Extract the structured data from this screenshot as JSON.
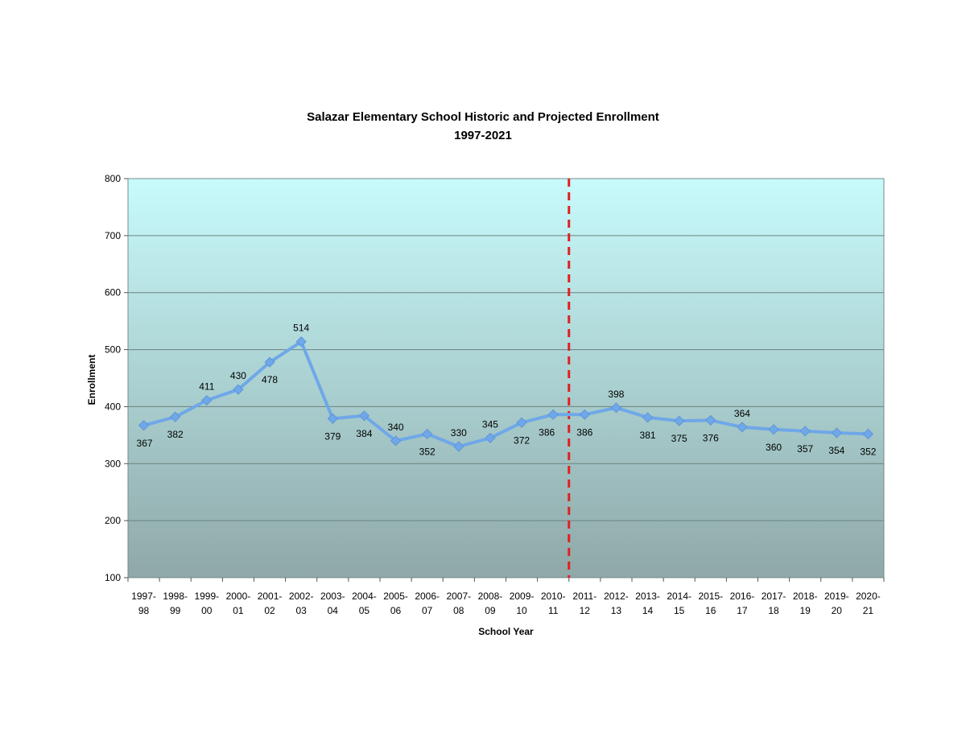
{
  "chart_data": {
    "type": "line",
    "title": "Salazar Elementary School Historic and Projected Enrollment",
    "subtitle": "1997-2021",
    "xlabel": "School Year",
    "ylabel": "Enrollment",
    "ylim": [
      100,
      800
    ],
    "yticks": [
      "100",
      "200",
      "300",
      "400",
      "500",
      "600",
      "700",
      "800"
    ],
    "grid": true,
    "categories": [
      [
        "1997-",
        "98"
      ],
      [
        "1998-",
        "99"
      ],
      [
        "1999-",
        "00"
      ],
      [
        "2000-",
        "01"
      ],
      [
        "2001-",
        "02"
      ],
      [
        "2002-",
        "03"
      ],
      [
        "2003-",
        "04"
      ],
      [
        "2004-",
        "05"
      ],
      [
        "2005-",
        "06"
      ],
      [
        "2006-",
        "07"
      ],
      [
        "2007-",
        "08"
      ],
      [
        "2008-",
        "09"
      ],
      [
        "2009-",
        "10"
      ],
      [
        "2010-",
        "11"
      ],
      [
        "2011-",
        "12"
      ],
      [
        "2012-",
        "13"
      ],
      [
        "2013-",
        "14"
      ],
      [
        "2014-",
        "15"
      ],
      [
        "2015-",
        "16"
      ],
      [
        "2016-",
        "17"
      ],
      [
        "2017-",
        "18"
      ],
      [
        "2018-",
        "19"
      ],
      [
        "2019-",
        "20"
      ],
      [
        "2020-",
        "21"
      ]
    ],
    "series": [
      {
        "values": [
          367,
          382,
          411,
          430,
          478,
          514,
          379,
          384,
          340,
          352,
          330,
          345,
          372,
          386,
          386,
          398,
          381,
          375,
          376,
          364,
          360,
          357,
          354,
          352
        ],
        "labels": [
          "367",
          "382",
          "411",
          "430",
          "478",
          "514",
          "379",
          "384",
          "340",
          "352",
          "330",
          "345",
          "372",
          "386",
          "386",
          "398",
          "381",
          "375",
          "376",
          "364",
          "360",
          "357",
          "354",
          "352"
        ],
        "color": "#6fa8e8"
      }
    ],
    "divider_after_category": 13,
    "divider_color": "#e02020",
    "plot_gradient": [
      "#c8fbfc",
      "#8fa8a8"
    ]
  }
}
